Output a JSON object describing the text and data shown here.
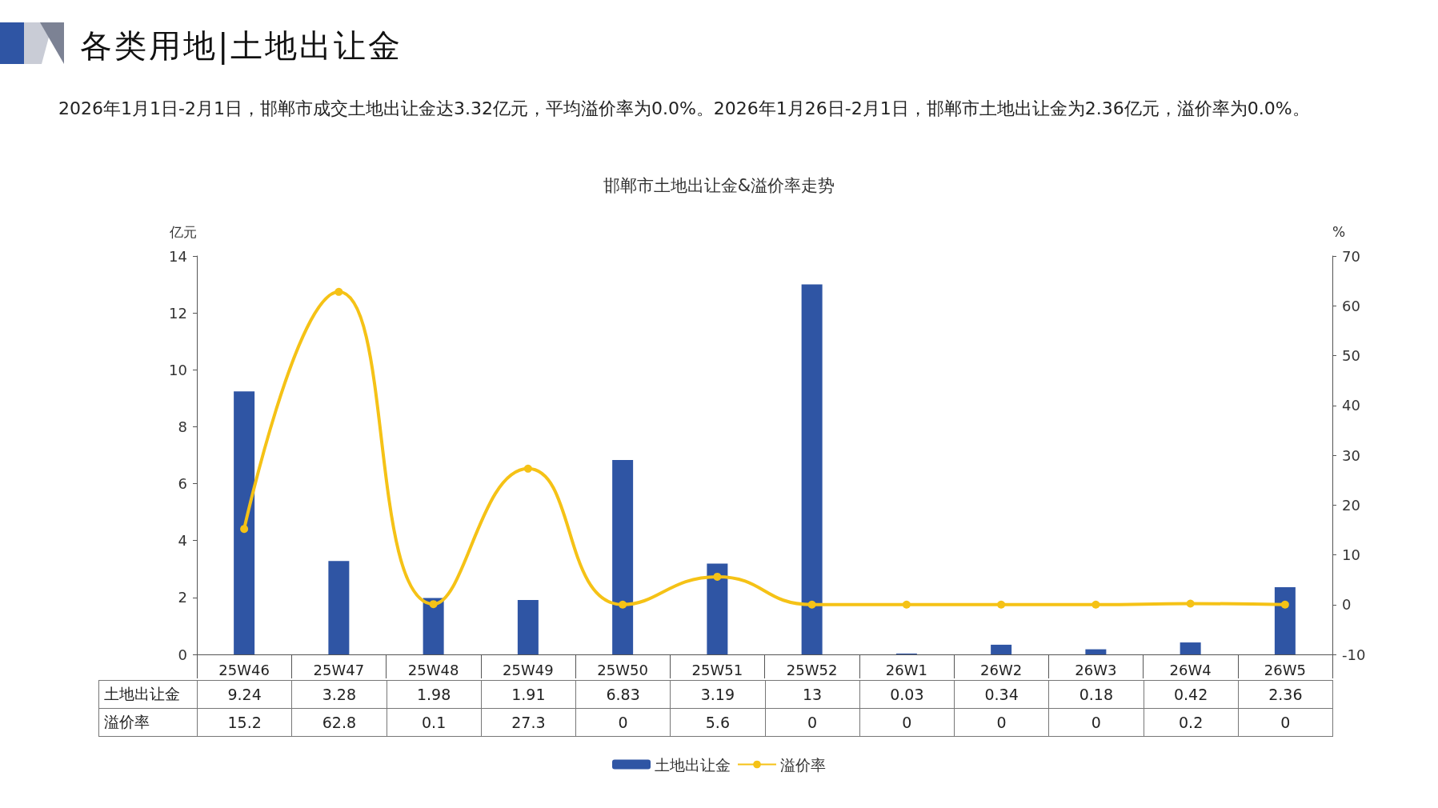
{
  "chart_data": {
    "type": "bar",
    "title": "各类用地|土地出让金",
    "subtitle": "邯郸市土地出让金&溢价率走势",
    "annotations": [
      "2026年1月1日-2月1日，邯郸市成交土地出让金达3.32亿元，平均溢价率为0.0%。2026年1月26日-2月1日，邯郸市土地出让金为2.36亿元，溢价率为0.0%。"
    ],
    "ylabel": "亿元",
    "y2label": "%",
    "categories": [
      "25W46",
      "25W47",
      "25W48",
      "25W49",
      "25W50",
      "25W51",
      "25W52",
      "26W1",
      "26W2",
      "26W3",
      "26W4",
      "26W5"
    ],
    "series": [
      {
        "name": "土地出让金",
        "color": "#2f55a4",
        "values": [
          9.24,
          3.28,
          1.98,
          1.91,
          6.83,
          3.19,
          13,
          0.03,
          0.34,
          0.18,
          0.42,
          2.36
        ]
      },
      {
        "name": "溢价率",
        "type": "line",
        "axis": "y2",
        "color": "#f5c216",
        "values": [
          15.2,
          62.8,
          0.1,
          27.3,
          0,
          5.6,
          0,
          0,
          0,
          0,
          0.2,
          0
        ]
      }
    ],
    "ylim": [
      0,
      14
    ],
    "yticks": [
      0,
      2,
      4,
      6,
      8,
      10,
      12,
      14
    ],
    "y2lim": [
      -10,
      70
    ],
    "y2ticks": [
      -10,
      0,
      10,
      20,
      30,
      40,
      50,
      60,
      70
    ],
    "data_labels": true,
    "legend": "bottom",
    "marker": "circle",
    "line_style": "solid",
    "grid": false
  }
}
